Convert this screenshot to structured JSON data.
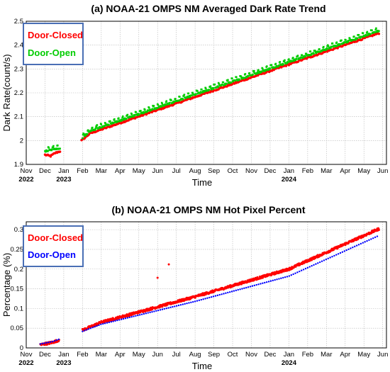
{
  "chart_data": [
    {
      "type": "scatter",
      "title": "(a) NOAA-21 OMPS NM Averaged Dark Rate Trend",
      "xlabel": "Time",
      "ylabel": "Dark Rate(count/s)",
      "ylim": [
        1.9,
        2.5
      ],
      "yticks": [
        "1.9",
        "2",
        "2.1",
        "2.2",
        "2.3",
        "2.4",
        "2.5"
      ],
      "xtick_labels": [
        "Nov",
        "Dec",
        "Jan",
        "Feb",
        "Mar",
        "Apr",
        "May",
        "Jun",
        "Jul",
        "Aug",
        "Sep",
        "Oct",
        "Nov",
        "Dec",
        "Jan",
        "Feb",
        "Mar",
        "Apr",
        "May",
        "Jun"
      ],
      "year_labels": [
        {
          "index": 0,
          "text": "2022"
        },
        {
          "index": 2,
          "text": "2023"
        },
        {
          "index": 14,
          "text": "2024"
        }
      ],
      "grid": true,
      "legend_position": "top-left",
      "series": [
        {
          "name": "Door-Closed",
          "color": "#ff0000",
          "segments": [
            {
              "x": [
                1.0,
                1.3,
                1.55,
                1.8
              ],
              "y": [
                1.94,
                1.935,
                1.948,
                1.955
              ]
            },
            {
              "x": [
                2.95,
                3.4,
                18.8
              ],
              "y": [
                2.0,
                2.03,
                2.45
              ]
            }
          ]
        },
        {
          "name": "Door-Open",
          "color": "#00cc00",
          "segments": [
            {
              "x": [
                1.0,
                1.3,
                1.55,
                1.8
              ],
              "y": [
                1.955,
                1.96,
                1.965,
                1.968
              ]
            },
            {
              "x": [
                3.0,
                3.4,
                18.8
              ],
              "y": [
                2.012,
                2.04,
                2.46
              ]
            }
          ]
        }
      ]
    },
    {
      "type": "scatter",
      "title": "(b) NOAA-21 OMPS NM Hot Pixel Percent",
      "xlabel": "Time",
      "ylabel": "Percentage (%)",
      "ylim": [
        0,
        0.32
      ],
      "yticks": [
        "0",
        "0.05",
        "0.1",
        "0.15",
        "0.2",
        "0.25",
        "0.3"
      ],
      "xtick_labels": [
        "Nov",
        "Dec",
        "Jan",
        "Feb",
        "Mar",
        "Apr",
        "May",
        "Jun",
        "Jul",
        "Aug",
        "Sep",
        "Oct",
        "Nov",
        "Dec",
        "Jan",
        "Feb",
        "Mar",
        "Apr",
        "May",
        "Jun"
      ],
      "year_labels": [
        {
          "index": 0,
          "text": "2022"
        },
        {
          "index": 2,
          "text": "2023"
        },
        {
          "index": 14,
          "text": "2024"
        }
      ],
      "grid": true,
      "legend_position": "top-left",
      "outliers": [
        {
          "x": 7.0,
          "y": 0.178
        },
        {
          "x": 7.6,
          "y": 0.212
        }
      ],
      "series": [
        {
          "name": "Door-Closed",
          "color": "#ff0000",
          "segments": [
            {
              "x": [
                0.75,
                1.4,
                1.75
              ],
              "y": [
                0.008,
                0.014,
                0.02
              ]
            },
            {
              "x": [
                3.0,
                4.0,
                9.0,
                14.0,
                18.8
              ],
              "y": [
                0.045,
                0.065,
                0.13,
                0.2,
                0.302
              ]
            }
          ]
        },
        {
          "name": "Door-Open",
          "color": "#0000ff",
          "segments": [
            {
              "x": [
                0.75,
                1.4,
                1.75
              ],
              "y": [
                0.01,
                0.016,
                0.022
              ]
            },
            {
              "x": [
                3.0,
                4.0,
                9.0,
                14.0,
                18.8
              ],
              "y": [
                0.042,
                0.06,
                0.118,
                0.182,
                0.285
              ]
            }
          ]
        }
      ]
    }
  ]
}
